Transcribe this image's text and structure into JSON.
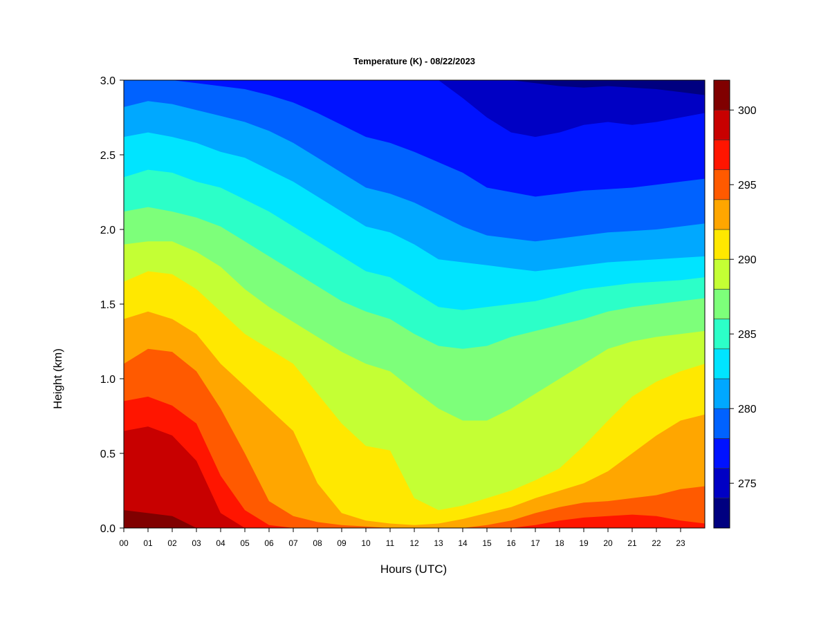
{
  "chart_data": {
    "type": "heatmap",
    "title": "Temperature (K) - 08/22/2023",
    "xlabel": "Hours (UTC)",
    "ylabel": "Height (km)",
    "xlim": [
      0,
      24
    ],
    "ylim": [
      0.0,
      3.0
    ],
    "x_ticks": [
      "00",
      "01",
      "02",
      "03",
      "04",
      "05",
      "06",
      "07",
      "08",
      "09",
      "10",
      "11",
      "12",
      "13",
      "14",
      "15",
      "16",
      "17",
      "18",
      "19",
      "20",
      "21",
      "22",
      "23"
    ],
    "y_ticks": [
      "0.0",
      "0.5",
      "1.0",
      "1.5",
      "2.0",
      "2.5",
      "3.0"
    ],
    "grid": false,
    "colorbar": {
      "placement": "right",
      "min": 272,
      "max": 302,
      "step": 2,
      "ticks": [
        "275",
        "280",
        "285",
        "290",
        "295",
        "300"
      ],
      "colors": [
        "#000080",
        "#0000c4",
        "#0012ff",
        "#0062ff",
        "#00a8ff",
        "#00e4ff",
        "#2cffc8",
        "#7dff7a",
        "#c4ff34",
        "#ffe800",
        "#ffa600",
        "#ff5a00",
        "#ff1500",
        "#c80000",
        "#800000"
      ]
    },
    "x_hours": [
      0,
      1,
      2,
      3,
      4,
      5,
      6,
      7,
      8,
      9,
      10,
      11,
      12,
      13,
      14,
      15,
      16,
      17,
      18,
      19,
      20,
      21,
      22,
      23,
      24
    ],
    "isotherm_heights_km": [
      {
        "temperature": 300,
        "heights": [
          0.12,
          0.1,
          0.08,
          0.0,
          0,
          0,
          0,
          0,
          0,
          0,
          0,
          0,
          0,
          0,
          0,
          0,
          0,
          0,
          0,
          0,
          0,
          0,
          0,
          0,
          0
        ]
      },
      {
        "temperature": 298,
        "heights": [
          0.65,
          0.68,
          0.62,
          0.45,
          0.1,
          0.0,
          0,
          0,
          0,
          0,
          0,
          0,
          0,
          0,
          0,
          0,
          0,
          0,
          0,
          0,
          0,
          0,
          0,
          0,
          0
        ]
      },
      {
        "temperature": 296,
        "heights": [
          0.85,
          0.88,
          0.82,
          0.7,
          0.35,
          0.12,
          0.02,
          0.0,
          0,
          0,
          0,
          0,
          0,
          0,
          0,
          0,
          0,
          0.02,
          0.05,
          0.07,
          0.08,
          0.09,
          0.08,
          0.05,
          0.03
        ]
      },
      {
        "temperature": 294,
        "heights": [
          1.1,
          1.2,
          1.18,
          1.05,
          0.8,
          0.5,
          0.18,
          0.08,
          0.04,
          0.02,
          0.01,
          0.0,
          0,
          0,
          0,
          0.02,
          0.05,
          0.1,
          0.14,
          0.17,
          0.18,
          0.2,
          0.22,
          0.26,
          0.28
        ]
      },
      {
        "temperature": 292,
        "heights": [
          1.4,
          1.45,
          1.4,
          1.3,
          1.1,
          0.95,
          0.8,
          0.65,
          0.3,
          0.1,
          0.05,
          0.03,
          0.02,
          0.03,
          0.06,
          0.1,
          0.14,
          0.2,
          0.25,
          0.3,
          0.38,
          0.5,
          0.62,
          0.72,
          0.76
        ]
      },
      {
        "temperature": 290,
        "heights": [
          1.65,
          1.72,
          1.7,
          1.6,
          1.45,
          1.3,
          1.2,
          1.1,
          0.9,
          0.7,
          0.55,
          0.52,
          0.2,
          0.12,
          0.15,
          0.2,
          0.25,
          0.32,
          0.4,
          0.55,
          0.72,
          0.88,
          0.98,
          1.05,
          1.1
        ]
      },
      {
        "temperature": 288,
        "heights": [
          1.9,
          1.92,
          1.92,
          1.85,
          1.75,
          1.6,
          1.48,
          1.38,
          1.28,
          1.18,
          1.1,
          1.05,
          0.92,
          0.8,
          0.72,
          0.72,
          0.8,
          0.9,
          1.0,
          1.1,
          1.2,
          1.25,
          1.28,
          1.3,
          1.32
        ]
      },
      {
        "temperature": 286,
        "heights": [
          2.12,
          2.15,
          2.12,
          2.08,
          2.02,
          1.92,
          1.82,
          1.72,
          1.62,
          1.52,
          1.45,
          1.4,
          1.3,
          1.22,
          1.2,
          1.22,
          1.28,
          1.32,
          1.36,
          1.4,
          1.45,
          1.48,
          1.5,
          1.52,
          1.54
        ]
      },
      {
        "temperature": 284,
        "heights": [
          2.35,
          2.4,
          2.38,
          2.32,
          2.28,
          2.2,
          2.12,
          2.02,
          1.92,
          1.82,
          1.72,
          1.68,
          1.58,
          1.48,
          1.46,
          1.48,
          1.5,
          1.52,
          1.56,
          1.6,
          1.62,
          1.64,
          1.65,
          1.66,
          1.68
        ]
      },
      {
        "temperature": 282,
        "heights": [
          2.62,
          2.65,
          2.62,
          2.58,
          2.52,
          2.48,
          2.4,
          2.32,
          2.22,
          2.12,
          2.02,
          1.98,
          1.9,
          1.8,
          1.78,
          1.76,
          1.74,
          1.72,
          1.74,
          1.76,
          1.78,
          1.79,
          1.8,
          1.81,
          1.82
        ]
      },
      {
        "temperature": 280,
        "heights": [
          2.82,
          2.86,
          2.84,
          2.8,
          2.76,
          2.72,
          2.66,
          2.58,
          2.48,
          2.38,
          2.28,
          2.24,
          2.18,
          2.1,
          2.02,
          1.96,
          1.94,
          1.92,
          1.94,
          1.96,
          1.98,
          1.99,
          2.0,
          2.02,
          2.04
        ]
      },
      {
        "temperature": 278,
        "heights": [
          3.0,
          3.0,
          3.0,
          2.98,
          2.96,
          2.94,
          2.9,
          2.85,
          2.78,
          2.7,
          2.62,
          2.58,
          2.52,
          2.45,
          2.38,
          2.28,
          2.25,
          2.22,
          2.24,
          2.26,
          2.27,
          2.28,
          2.3,
          2.32,
          2.34
        ]
      },
      {
        "temperature": 276,
        "heights": [
          3.0,
          3.0,
          3.0,
          3.0,
          3.0,
          3.0,
          3.0,
          3.0,
          3.0,
          3.0,
          3.0,
          3.0,
          3.0,
          3.0,
          2.88,
          2.75,
          2.65,
          2.62,
          2.65,
          2.7,
          2.72,
          2.7,
          2.72,
          2.75,
          2.78
        ]
      },
      {
        "temperature": 274,
        "heights": [
          3.0,
          3.0,
          3.0,
          3.0,
          3.0,
          3.0,
          3.0,
          3.0,
          3.0,
          3.0,
          3.0,
          3.0,
          3.0,
          3.0,
          3.0,
          3.0,
          3.0,
          2.98,
          2.96,
          2.95,
          2.96,
          2.95,
          2.94,
          2.92,
          2.9
        ]
      }
    ]
  }
}
